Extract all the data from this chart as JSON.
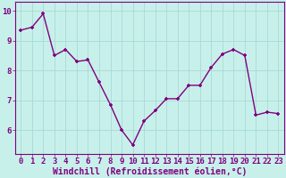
{
  "x": [
    0,
    1,
    2,
    3,
    4,
    5,
    6,
    7,
    8,
    9,
    10,
    11,
    12,
    13,
    14,
    15,
    16,
    17,
    18,
    19,
    20,
    21,
    22,
    23
  ],
  "y": [
    9.35,
    9.45,
    9.9,
    8.5,
    8.7,
    8.3,
    8.35,
    7.6,
    6.85,
    6.0,
    5.5,
    6.3,
    6.65,
    7.05,
    7.05,
    7.5,
    7.5,
    8.1,
    8.55,
    8.7,
    8.5,
    6.5,
    6.6,
    6.55
  ],
  "line_color": "#800080",
  "marker": "P",
  "marker_size": 3.5,
  "line_width": 1.0,
  "bg_color": "#c8f0ea",
  "grid_color": "#aaddd8",
  "xlabel": "Windchill (Refroidissement éolien,°C)",
  "xlabel_color": "#800080",
  "tick_color": "#800080",
  "ylim": [
    5.2,
    10.3
  ],
  "yticks": [
    6,
    7,
    8,
    9,
    10
  ],
  "xlim": [
    -0.5,
    23.5
  ],
  "xticks": [
    0,
    1,
    2,
    3,
    4,
    5,
    6,
    7,
    8,
    9,
    10,
    11,
    12,
    13,
    14,
    15,
    16,
    17,
    18,
    19,
    20,
    21,
    22,
    23
  ],
  "xlabel_fontsize": 7,
  "tick_fontsize": 6.5,
  "axis_spine_color": "#800080"
}
